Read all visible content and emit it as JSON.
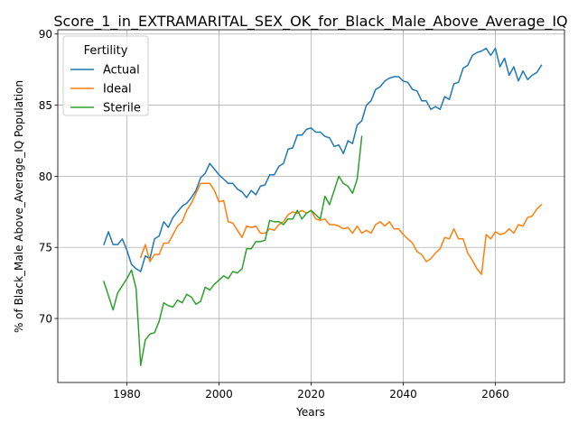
{
  "chart_data": {
    "type": "line",
    "title": "Score_1_in_EXTRAMARITAL_SEX_OK_for_Black_Male_Above_Average_IQ",
    "xlabel": "Years",
    "ylabel": "% of Black_Male Above_Average_IQ Population",
    "xlim": [
      1965,
      2075
    ],
    "ylim": [
      65.5,
      90.3
    ],
    "xticks": [
      1980,
      2000,
      2020,
      2040,
      2060
    ],
    "yticks": [
      70,
      75,
      80,
      85,
      90
    ],
    "grid": true,
    "legend": {
      "title": "Fertility",
      "placement": "upper-left"
    },
    "series": [
      {
        "name": "Actual",
        "color": "#1f77b4",
        "x": [
          1975,
          1976,
          1977,
          1978,
          1979,
          1980,
          1981,
          1982,
          1983,
          1984,
          1985,
          1986,
          1987,
          1988,
          1989,
          1990,
          1991,
          1992,
          1993,
          1994,
          1995,
          1996,
          1997,
          1998,
          1999,
          2000,
          2001,
          2002,
          2003,
          2004,
          2005,
          2006,
          2007,
          2008,
          2009,
          2010,
          2011,
          2012,
          2013,
          2014,
          2015,
          2016,
          2017,
          2018,
          2019,
          2020,
          2021,
          2022,
          2023,
          2024,
          2025,
          2026,
          2027,
          2028,
          2029,
          2030,
          2031,
          2032,
          2033,
          2034,
          2035,
          2036,
          2037,
          2038,
          2039,
          2040,
          2041,
          2042,
          2043,
          2044,
          2045,
          2046,
          2047,
          2048,
          2049,
          2050,
          2051,
          2052,
          2053,
          2054,
          2055,
          2056,
          2057,
          2058,
          2059,
          2060,
          2061,
          2062,
          2063,
          2064,
          2065,
          2066,
          2067,
          2068,
          2069,
          2070
        ],
        "y": [
          75.2,
          76.1,
          75.2,
          75.2,
          75.6,
          74.8,
          73.8,
          73.5,
          73.3,
          74.4,
          74.2,
          75.6,
          75.8,
          76.8,
          76.4,
          77.1,
          77.5,
          77.9,
          78.1,
          78.5,
          79.0,
          79.9,
          80.2,
          80.9,
          80.5,
          80.1,
          79.8,
          79.5,
          79.5,
          79.1,
          78.9,
          78.5,
          79.0,
          78.7,
          79.3,
          79.4,
          80.1,
          80.1,
          80.7,
          80.9,
          81.9,
          82.0,
          82.9,
          82.9,
          83.3,
          83.4,
          83.1,
          83.1,
          82.8,
          82.7,
          82.1,
          82.2,
          81.6,
          82.5,
          82.3,
          83.6,
          83.9,
          85.0,
          85.3,
          86.1,
          86.3,
          86.7,
          86.9,
          87.0,
          87.0,
          86.7,
          86.6,
          86.1,
          86.0,
          85.3,
          85.3,
          84.7,
          84.9,
          84.7,
          85.6,
          85.4,
          86.5,
          86.6,
          87.6,
          87.8,
          88.5,
          88.7,
          88.8,
          89.0,
          88.5,
          89.0,
          87.7,
          88.3,
          87.1,
          87.7,
          86.7,
          87.4,
          86.8,
          87.1,
          87.3,
          87.8
        ]
      },
      {
        "name": "Ideal",
        "color": "#ff7f0e",
        "x": [
          1983,
          1984,
          1985,
          1986,
          1987,
          1988,
          1989,
          1990,
          1991,
          1992,
          1993,
          1994,
          1995,
          1996,
          1997,
          1998,
          1999,
          2000,
          2001,
          2002,
          2003,
          2004,
          2005,
          2006,
          2007,
          2008,
          2009,
          2010,
          2011,
          2012,
          2013,
          2014,
          2015,
          2016,
          2017,
          2018,
          2019,
          2020,
          2021,
          2022,
          2023,
          2024,
          2025,
          2026,
          2027,
          2028,
          2029,
          2030,
          2031,
          2032,
          2033,
          2034,
          2035,
          2036,
          2037,
          2038,
          2039,
          2040,
          2041,
          2042,
          2043,
          2044,
          2045,
          2046,
          2047,
          2048,
          2049,
          2050,
          2051,
          2052,
          2053,
          2054,
          2055,
          2056,
          2057,
          2058,
          2059,
          2060,
          2061,
          2062,
          2063,
          2064,
          2065,
          2066,
          2067,
          2068,
          2069,
          2070
        ],
        "y": [
          74.3,
          75.2,
          74.0,
          74.5,
          74.5,
          75.3,
          75.3,
          75.9,
          76.5,
          76.8,
          77.6,
          78.1,
          78.8,
          79.5,
          79.5,
          79.5,
          79.0,
          78.2,
          78.3,
          76.8,
          76.7,
          76.2,
          75.7,
          76.5,
          76.4,
          76.5,
          76.0,
          76.0,
          76.3,
          76.2,
          76.6,
          76.8,
          77.3,
          77.5,
          77.4,
          77.6,
          77.4,
          77.6,
          77.0,
          76.9,
          77.0,
          76.6,
          76.6,
          76.5,
          76.3,
          76.4,
          76.0,
          76.5,
          76.0,
          76.2,
          76.0,
          76.6,
          76.8,
          76.5,
          76.8,
          76.3,
          76.3,
          75.9,
          75.6,
          75.3,
          74.7,
          74.5,
          74.0,
          74.2,
          74.6,
          74.9,
          75.7,
          75.6,
          76.3,
          75.6,
          75.6,
          74.6,
          74.1,
          73.5,
          73.1,
          75.9,
          75.6,
          76.1,
          75.9,
          76.0,
          76.3,
          76.0,
          76.6,
          76.5,
          77.1,
          77.2,
          77.7,
          78.0
        ]
      },
      {
        "name": "Sterile",
        "color": "#2ca02c",
        "x": [
          1975,
          1976,
          1977,
          1978,
          1979,
          1980,
          1981,
          1982,
          1983,
          1984,
          1985,
          1986,
          1987,
          1988,
          1989,
          1990,
          1991,
          1992,
          1993,
          1994,
          1995,
          1996,
          1997,
          1998,
          1999,
          2000,
          2001,
          2002,
          2003,
          2004,
          2005,
          2006,
          2007,
          2008,
          2009,
          2010,
          2011,
          2012,
          2013,
          2014,
          2015,
          2016,
          2017,
          2018,
          2019,
          2020,
          2021,
          2022,
          2023,
          2024,
          2025,
          2026,
          2027,
          2028,
          2029,
          2030,
          2031
        ],
        "y": [
          72.6,
          71.6,
          70.6,
          71.8,
          72.3,
          72.8,
          73.4,
          72.1,
          66.7,
          68.5,
          68.9,
          69.0,
          69.8,
          71.1,
          70.9,
          70.8,
          71.3,
          71.1,
          71.7,
          71.5,
          71.0,
          71.2,
          72.2,
          72.0,
          72.4,
          72.7,
          73.0,
          72.8,
          73.3,
          73.2,
          73.5,
          74.9,
          74.9,
          75.4,
          75.4,
          75.5,
          76.9,
          76.8,
          76.8,
          76.6,
          77.0,
          77.0,
          77.6,
          77.0,
          77.4,
          77.6,
          77.3,
          77.0,
          78.6,
          78.0,
          79.0,
          80.0,
          79.5,
          79.3,
          78.8,
          79.8,
          82.8
        ]
      }
    ]
  }
}
